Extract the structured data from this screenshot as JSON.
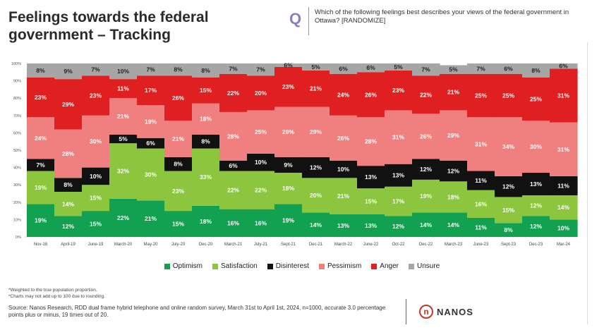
{
  "header": {
    "title": "Feelings towards the federal government – Tracking",
    "q_icon": "Q",
    "question": "Which of the following feelings best describes your views of the federal government in Ottawa? [RANDOMIZE]"
  },
  "chart_data": {
    "type": "bar",
    "stacked": true,
    "percent": true,
    "categories": [
      "Nov-18",
      "April-19",
      "June-19",
      "March-20",
      "May-20",
      "July-20",
      "Dec-20",
      "March-21",
      "July-21",
      "Sept-21",
      "Dec-21",
      "March-22",
      "June-22",
      "Oct-22",
      "Dec-22",
      "March-23",
      "June-23",
      "Sept-23",
      "Dec-23",
      "Mar-24"
    ],
    "series": [
      {
        "name": "Optimism",
        "color": "#12a150",
        "values": [
          19,
          12,
          15,
          22,
          21,
          15,
          18,
          16,
          16,
          19,
          14,
          13,
          13,
          12,
          14,
          14,
          11,
          8,
          12,
          10
        ]
      },
      {
        "name": "Satisfaction",
        "color": "#8cc63f",
        "values": [
          19,
          14,
          15,
          32,
          30,
          23,
          33,
          22,
          22,
          18,
          20,
          21,
          15,
          17,
          19,
          18,
          16,
          15,
          12,
          14
        ]
      },
      {
        "name": "Disinterest",
        "color": "#111111",
        "values": [
          7,
          8,
          10,
          5,
          6,
          8,
          8,
          6,
          10,
          9,
          12,
          10,
          13,
          13,
          12,
          12,
          11,
          12,
          13,
          11
        ]
      },
      {
        "name": "Pessimism",
        "color": "#f08080",
        "values": [
          24,
          28,
          30,
          21,
          19,
          21,
          18,
          28,
          25,
          29,
          29,
          26,
          28,
          31,
          26,
          29,
          31,
          34,
          30,
          31
        ]
      },
      {
        "name": "Anger",
        "color": "#e02020",
        "values": [
          23,
          29,
          23,
          11,
          17,
          26,
          15,
          22,
          20,
          23,
          21,
          24,
          26,
          23,
          22,
          21,
          25,
          25,
          25,
          31
        ]
      },
      {
        "name": "Unsure",
        "color": "#a6a6a6",
        "values": [
          8,
          9,
          7,
          10,
          7,
          8,
          8,
          7,
          7,
          6,
          5,
          6,
          6,
          5,
          7,
          5,
          7,
          6,
          8,
          6
        ]
      }
    ],
    "y_ticks": [
      "0%",
      "10%",
      "20%",
      "30%",
      "40%",
      "50%",
      "60%",
      "70%",
      "80%",
      "90%",
      "100%"
    ],
    "ylim": [
      0,
      100
    ],
    "legend_position": "bottom"
  },
  "footnotes": [
    "*Weighted to the true population proportion.",
    "*Charts may not add up to 100 due to rounding."
  ],
  "source": "Source: Nanos Research, RDD dual frame hybrid telephone and online random survey, March 31st to April 1st, 2024, n=1000, accurate 3.0 percentage points plus or minus, 19 times out of 20.",
  "logo": {
    "mark": "n",
    "text": "NANOS"
  }
}
